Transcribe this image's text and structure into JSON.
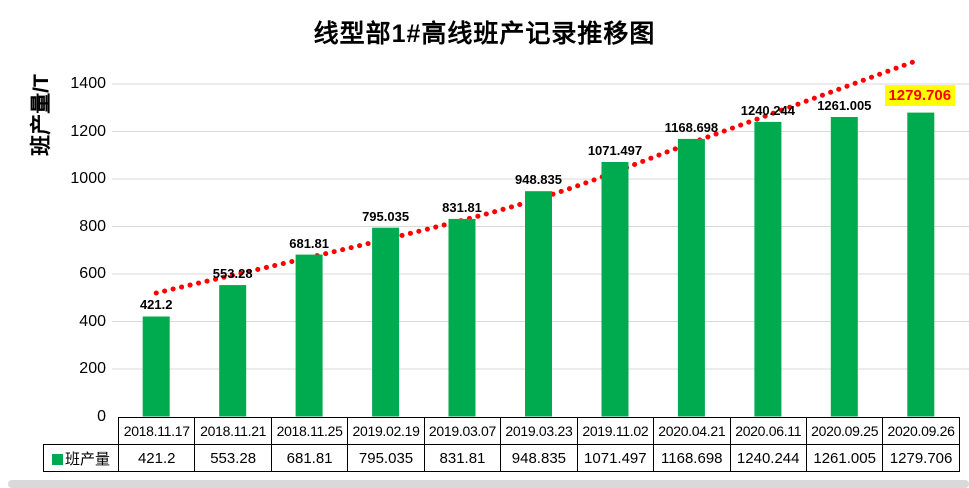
{
  "chart_data": {
    "type": "bar",
    "title": "线型部1#高线班产记录推移图",
    "ylabel": "班产量/T",
    "xlabel": "",
    "categories": [
      "2018.11.17",
      "2018.11.21",
      "2018.11.25",
      "2019.02.19",
      "2019.03.07",
      "2019.03.23",
      "2019.11.02",
      "2020.04.21",
      "2020.06.11",
      "2020.09.25",
      "2020.09.26"
    ],
    "series": [
      {
        "name": "班产量",
        "values": [
          421.2,
          553.28,
          681.81,
          795.035,
          831.81,
          948.835,
          1071.497,
          1168.698,
          1240.244,
          1261.005,
          1279.706
        ]
      }
    ],
    "ylim": [
      0,
      1400
    ],
    "ytick_step": 200,
    "grid": true,
    "legend_position": "table-left",
    "bar_color": "#00AB4F",
    "grid_color": "#D9D9D9",
    "border_color": "#000000",
    "label_color": "#000000",
    "trend": {
      "color": "#FF0000",
      "style": "dotted",
      "points_index_value": [
        [
          0,
          520
        ],
        [
          4.5,
          869
        ],
        [
          7.1,
          1164
        ],
        [
          9.97,
          1501
        ]
      ]
    },
    "highlight": {
      "index": 10,
      "background": "#FFFF00",
      "text_color": "#FF0000"
    }
  }
}
